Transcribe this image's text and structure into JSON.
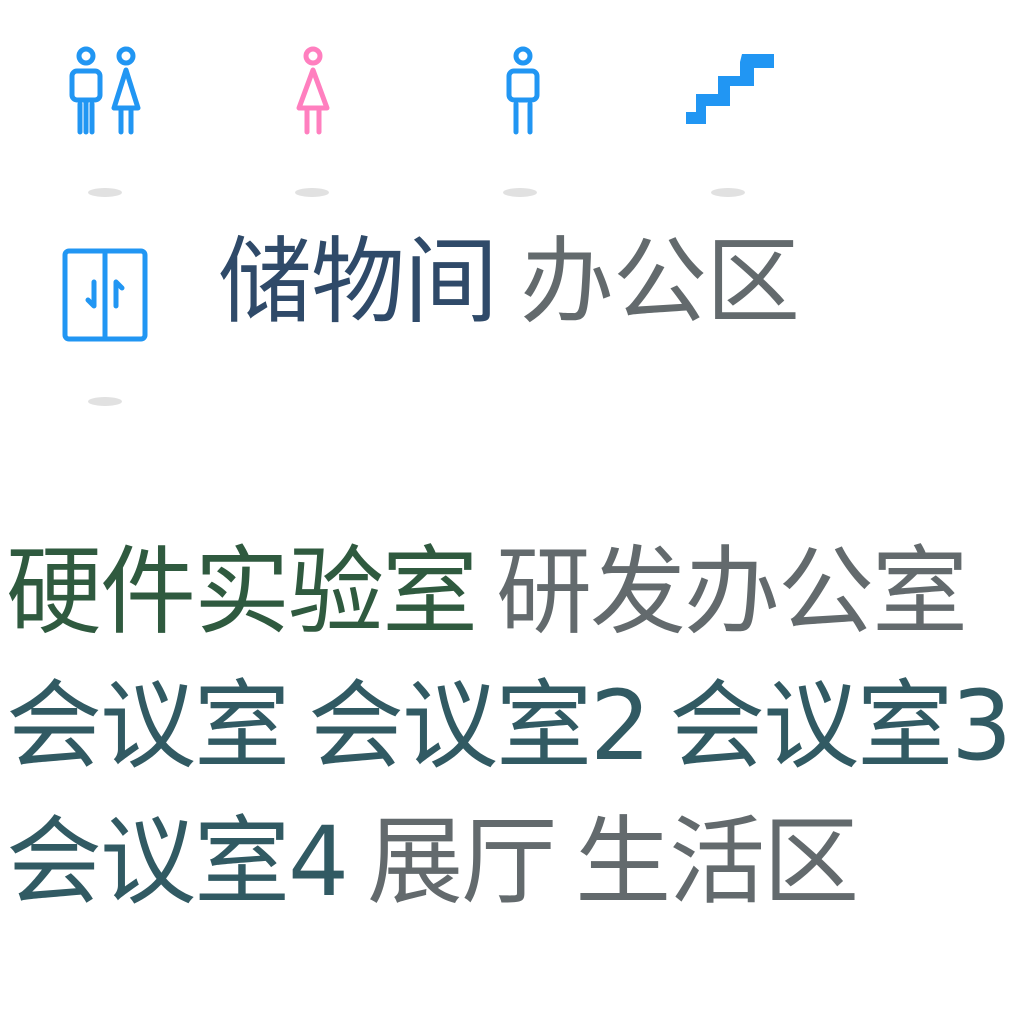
{
  "icons": [
    {
      "name": "restroom-icon",
      "color": "#2196F3"
    },
    {
      "name": "female-restroom-icon",
      "color": "#FF7FBF"
    },
    {
      "name": "male-restroom-icon",
      "color": "#2196F3"
    },
    {
      "name": "stairs-icon",
      "color": "#2196F3"
    },
    {
      "name": "elevator-icon",
      "color": "#2196F3"
    }
  ],
  "labels": {
    "storage": {
      "text": "储物间",
      "color": "#2F4A69"
    },
    "office_area": {
      "text": "办公区",
      "color": "#636A6D"
    },
    "hardware_lab": {
      "text": "硬件实验室",
      "color": "#2F5A3F"
    },
    "rd_office": {
      "text": "研发办公室",
      "color": "#636A6D"
    },
    "meeting_room": {
      "text": "会议室",
      "color": "#315A63"
    },
    "meeting_room_2": {
      "text": "会议室2",
      "color": "#315A63"
    },
    "meeting_room_3": {
      "text": "会议室3",
      "color": "#315A63"
    },
    "meeting_room_4": {
      "text": "会议室4",
      "color": "#315A63"
    },
    "showroom": {
      "text": "展厅",
      "color": "#636A6D"
    },
    "living_area": {
      "text": "生活区",
      "color": "#636A6D"
    }
  }
}
